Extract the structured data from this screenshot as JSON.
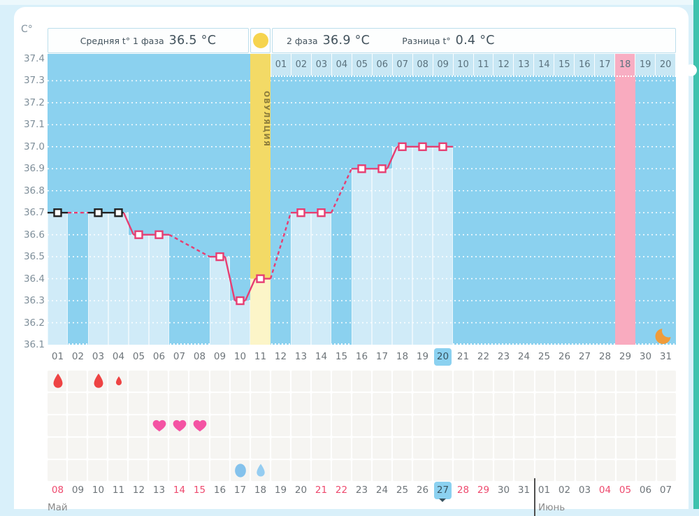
{
  "summary": {
    "phase1_label": "Средняя t° 1 фаза",
    "phase1_value": "36.5 °C",
    "phase2_label": "2 фаза",
    "phase2_value": "36.9 °C",
    "diff_label": "Разница t°",
    "diff_value": "0.4 °C"
  },
  "ovulation": {
    "label": "ОВУЛЯЦИЯ",
    "day": 11
  },
  "chart_data": {
    "type": "line",
    "ylabel": "C°",
    "ylim": [
      36.1,
      37.4
    ],
    "ytick_labels": [
      "37.4",
      "37.3",
      "37.2",
      "37.1",
      "37.0",
      "36.9",
      "36.8",
      "36.7",
      "36.6",
      "36.5",
      "36.4",
      "36.3",
      "36.2",
      "36.1"
    ],
    "grid": "dotted-white-horizontal",
    "x_days": 31,
    "x_labels": [
      "01",
      "02",
      "03",
      "04",
      "05",
      "06",
      "07",
      "08",
      "09",
      "10",
      "11",
      "12",
      "13",
      "14",
      "15",
      "16",
      "17",
      "18",
      "19",
      "20",
      "21",
      "22",
      "23",
      "24",
      "25",
      "26",
      "27",
      "28",
      "29",
      "30",
      "31"
    ],
    "today_label": "20",
    "points": [
      {
        "day": 1,
        "temp": 36.7,
        "style": "black"
      },
      {
        "day": 3,
        "temp": 36.7,
        "style": "black"
      },
      {
        "day": 4,
        "temp": 36.7,
        "style": "black"
      },
      {
        "day": 5,
        "temp": 36.6,
        "style": "pink"
      },
      {
        "day": 6,
        "temp": 36.6,
        "style": "pink"
      },
      {
        "day": 9,
        "temp": 36.5,
        "style": "pink"
      },
      {
        "day": 10,
        "temp": 36.3,
        "style": "pink"
      },
      {
        "day": 11,
        "temp": 36.4,
        "style": "pink"
      },
      {
        "day": 13,
        "temp": 36.7,
        "style": "pink"
      },
      {
        "day": 14,
        "temp": 36.7,
        "style": "pink"
      },
      {
        "day": 16,
        "temp": 36.9,
        "style": "pink"
      },
      {
        "day": 17,
        "temp": 36.9,
        "style": "pink"
      },
      {
        "day": 18,
        "temp": 37.0,
        "style": "pink"
      },
      {
        "day": 19,
        "temp": 37.0,
        "style": "pink"
      },
      {
        "day": 20,
        "temp": 37.0,
        "style": "pink"
      }
    ],
    "ovulation_day": 11,
    "predicted_day": 29,
    "moon_day": 31,
    "phase2_row": {
      "start_day": 12,
      "labels": [
        "01",
        "02",
        "03",
        "04",
        "05",
        "06",
        "07",
        "08",
        "09",
        "10",
        "11",
        "12",
        "13",
        "14",
        "15",
        "16",
        "17",
        "18",
        "19",
        "20"
      ],
      "highlight": "18"
    }
  },
  "marks": {
    "menstruation": [
      {
        "day": 1,
        "size": 24
      },
      {
        "day": 3,
        "size": 24
      },
      {
        "day": 4,
        "size": 15
      }
    ],
    "intimacy_days": [
      6,
      7,
      8
    ],
    "discharge": [
      {
        "day": 10,
        "shape": "oval"
      },
      {
        "day": 11,
        "shape": "drop"
      }
    ]
  },
  "calendar": {
    "month_left": "Май",
    "month_right": "Июнь",
    "today": "27",
    "cells": [
      {
        "label": "08",
        "red": true
      },
      {
        "label": "09"
      },
      {
        "label": "10"
      },
      {
        "label": "11"
      },
      {
        "label": "12"
      },
      {
        "label": "13"
      },
      {
        "label": "14",
        "red": true
      },
      {
        "label": "15",
        "red": true
      },
      {
        "label": "16"
      },
      {
        "label": "17"
      },
      {
        "label": "18"
      },
      {
        "label": "19"
      },
      {
        "label": "20"
      },
      {
        "label": "21",
        "red": true
      },
      {
        "label": "22",
        "red": true
      },
      {
        "label": "23"
      },
      {
        "label": "24"
      },
      {
        "label": "25"
      },
      {
        "label": "26"
      },
      {
        "label": "27"
      },
      {
        "label": "28",
        "red": true
      },
      {
        "label": "29",
        "red": true
      },
      {
        "label": "30"
      },
      {
        "label": "31"
      },
      {
        "label": "01"
      },
      {
        "label": "02"
      },
      {
        "label": "03"
      },
      {
        "label": "04",
        "red": true
      },
      {
        "label": "05",
        "red": true
      },
      {
        "label": "06"
      },
      {
        "label": "07"
      }
    ],
    "june_starts_at_cell": 25
  },
  "colors": {
    "plot_bg": "#8bd1ef",
    "bar": "#d0ebf8",
    "line_pink": "#e73e72",
    "line_black": "#222222",
    "p2cell": "#c8e7f4",
    "p2cell_pink": "#f8aec3",
    "p2text": "#5a717d",
    "ovu_yellow": "#f3da66",
    "ovu_yellow_light": "#fcf5c8",
    "ovu_text": "#8c7c3a",
    "ovu_dot": "#f6d44e",
    "predicted_pink": "#f9abbf",
    "day_text": "#6e757a",
    "red_date": "#ee4a6e",
    "today_bg": "#8bd1f0",
    "today_text": "#38535f",
    "grid_cell": "#f6f5f2",
    "drop_red": "#ee4343",
    "heart_pink": "#f453a3",
    "water_blue": "#84c2ec",
    "water_blue_light": "#95cdf1",
    "moon_orange": "#f09c3a",
    "sidebar_teal": "#3fc2ae"
  }
}
